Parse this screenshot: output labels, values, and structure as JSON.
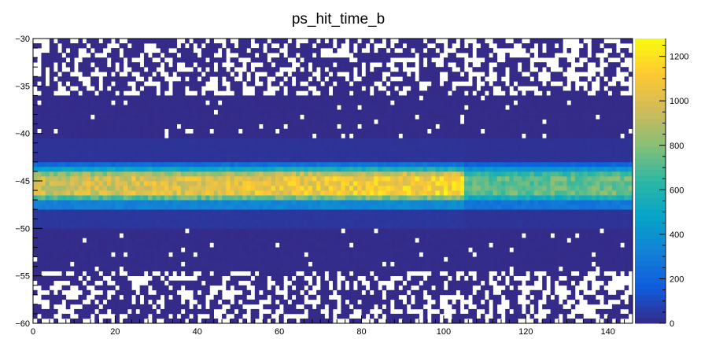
{
  "chart_data": {
    "type": "heatmap",
    "title": "ps_hit_time_b",
    "xlabel": "",
    "ylabel": "",
    "xlim": [
      0,
      146
    ],
    "ylim": [
      -60,
      -30
    ],
    "x_bins": 146,
    "y_bins": 60,
    "x_ticks": [
      0,
      20,
      40,
      60,
      80,
      100,
      120,
      140
    ],
    "y_ticks": [
      -60,
      -55,
      -50,
      -45,
      -40,
      -35,
      -30
    ],
    "zlim": [
      0,
      1280
    ],
    "z_ticks": [
      0,
      200,
      400,
      600,
      800,
      1000,
      1200
    ],
    "colormap": [
      "#352a87",
      "#0f5cdd",
      "#1481d6",
      "#06a4ca",
      "#2eb7a4",
      "#87bf77",
      "#d1bb59",
      "#fec832",
      "#f9fb0e"
    ],
    "profile": {
      "description_rows": "approximate mean counts per y-bin for x < 105 (left) and x >= 105 (right)",
      "rows": [
        {
          "y": [
            -60,
            -54.5
          ],
          "left": 0.6,
          "right": 0.5
        },
        {
          "y": [
            -54.5,
            -50
          ],
          "left": 6,
          "right": 5
        },
        {
          "y": [
            -50,
            -48
          ],
          "left": 40,
          "right": 30
        },
        {
          "y": [
            -48,
            -47
          ],
          "left": 330,
          "right": 230
        },
        {
          "y": [
            -47,
            -46.5
          ],
          "left": 720,
          "right": 470
        },
        {
          "y": [
            -46.5,
            -44.5
          ],
          "left": 1020,
          "right": 640
        },
        {
          "y": [
            -44.5,
            -44
          ],
          "left": 880,
          "right": 560
        },
        {
          "y": [
            -44,
            -43.5
          ],
          "left": 520,
          "right": 360
        },
        {
          "y": [
            -43.5,
            -43
          ],
          "left": 230,
          "right": 160
        },
        {
          "y": [
            -43,
            -40.5
          ],
          "left": 30,
          "right": 25
        },
        {
          "y": [
            -40.5,
            -36
          ],
          "left": 5,
          "right": 4
        },
        {
          "y": [
            -36,
            -30
          ],
          "left": 0.6,
          "right": 0.5
        }
      ]
    },
    "grid": false,
    "legend": "colorbar-right"
  }
}
